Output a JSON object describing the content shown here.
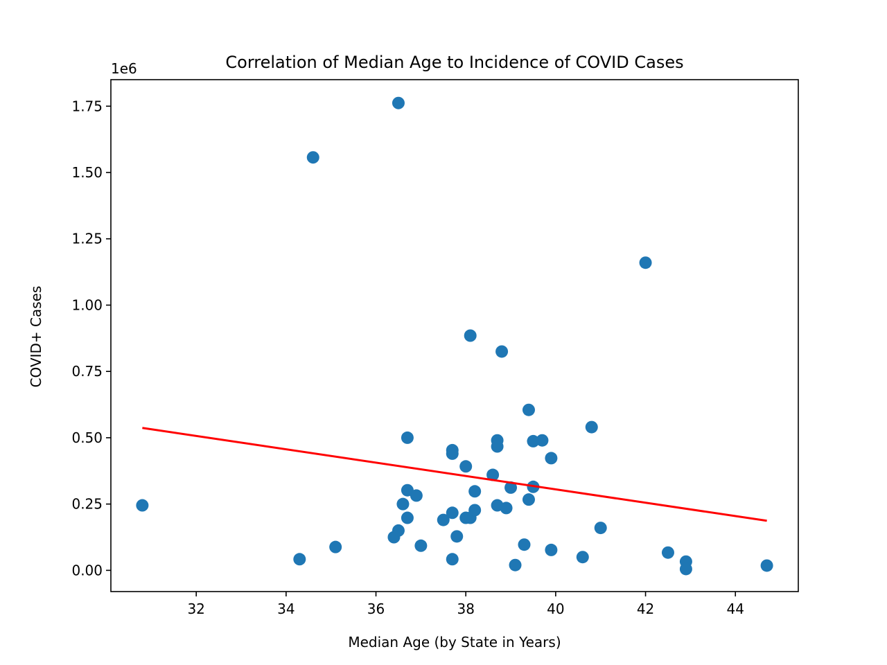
{
  "chart_data": {
    "type": "scatter",
    "title": "Correlation of Median Age to Incidence of COVID Cases",
    "xlabel": "Median Age (by State in Years)",
    "ylabel": "COVID+ Cases",
    "y_offset_label": "1e6",
    "xlim": [
      30.1,
      45.4
    ],
    "ylim": [
      -80000,
      1850000
    ],
    "x_ticks": [
      32,
      34,
      36,
      38,
      40,
      42,
      44
    ],
    "x_tick_labels": [
      "32",
      "34",
      "36",
      "38",
      "40",
      "42",
      "44"
    ],
    "y_ticks": [
      0,
      250000,
      500000,
      750000,
      1000000,
      1250000,
      1500000,
      1750000
    ],
    "y_tick_labels": [
      "0.00",
      "0.25",
      "0.50",
      "0.75",
      "1.00",
      "1.25",
      "1.50",
      "1.75"
    ],
    "grid": false,
    "colors": {
      "points": "#1f77b4",
      "regression": "#ff0000"
    },
    "points": [
      [
        30.8,
        245000
      ],
      [
        34.3,
        42000
      ],
      [
        34.6,
        1557000
      ],
      [
        35.1,
        88000
      ],
      [
        36.4,
        125000
      ],
      [
        36.5,
        1762000
      ],
      [
        36.5,
        150000
      ],
      [
        36.6,
        250000
      ],
      [
        36.7,
        500000
      ],
      [
        36.7,
        302000
      ],
      [
        36.7,
        198000
      ],
      [
        36.9,
        282000
      ],
      [
        37.0,
        93000
      ],
      [
        37.5,
        190000
      ],
      [
        37.7,
        453000
      ],
      [
        37.7,
        440000
      ],
      [
        37.7,
        217000
      ],
      [
        37.7,
        42000
      ],
      [
        37.8,
        128000
      ],
      [
        38.0,
        392000
      ],
      [
        38.0,
        198000
      ],
      [
        38.1,
        885000
      ],
      [
        38.1,
        198000
      ],
      [
        38.2,
        298000
      ],
      [
        38.2,
        227000
      ],
      [
        38.6,
        360000
      ],
      [
        38.7,
        490000
      ],
      [
        38.7,
        467000
      ],
      [
        38.7,
        245000
      ],
      [
        38.8,
        825000
      ],
      [
        38.9,
        235000
      ],
      [
        39.0,
        312000
      ],
      [
        39.1,
        20000
      ],
      [
        39.3,
        97000
      ],
      [
        39.4,
        605000
      ],
      [
        39.4,
        267000
      ],
      [
        39.5,
        487000
      ],
      [
        39.5,
        315000
      ],
      [
        39.7,
        490000
      ],
      [
        39.9,
        423000
      ],
      [
        39.9,
        77000
      ],
      [
        40.6,
        50000
      ],
      [
        40.8,
        540000
      ],
      [
        41.0,
        160000
      ],
      [
        42.0,
        1160000
      ],
      [
        42.5,
        67000
      ],
      [
        42.9,
        33000
      ],
      [
        42.9,
        5000
      ],
      [
        44.7,
        18000
      ]
    ],
    "regression_line": {
      "x": [
        30.8,
        44.7
      ],
      "y": [
        537000,
        187000
      ]
    }
  }
}
